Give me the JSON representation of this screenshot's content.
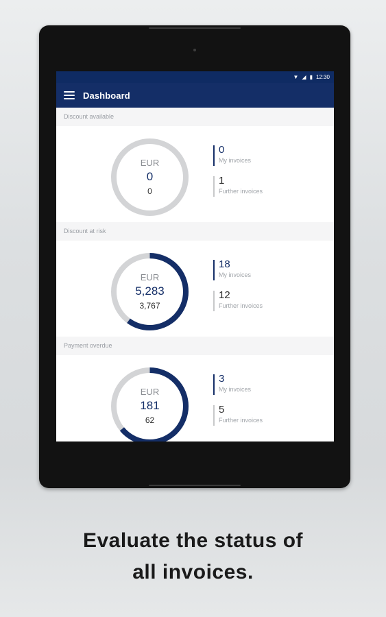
{
  "status_bar": {
    "time": "12:30",
    "icons": [
      "wifi-icon",
      "signal-icon",
      "battery-icon"
    ]
  },
  "app_bar": {
    "title": "Dashboard",
    "menu_icon": "menu-icon"
  },
  "sections": [
    {
      "title": "Discount available",
      "currency": "EUR",
      "amount": "0",
      "sub_amount": "0",
      "progress": 0,
      "my_invoices": {
        "value": "0",
        "label": "My invoices"
      },
      "further_invoices": {
        "value": "1",
        "label": "Further invoices"
      }
    },
    {
      "title": "Discount at risk",
      "currency": "EUR",
      "amount": "5,283",
      "sub_amount": "3,767",
      "progress": 0.6,
      "my_invoices": {
        "value": "18",
        "label": "My invoices"
      },
      "further_invoices": {
        "value": "12",
        "label": "Further invoices"
      }
    },
    {
      "title": "Payment overdue",
      "currency": "EUR",
      "amount": "181",
      "sub_amount": "62",
      "progress": 0.64,
      "my_invoices": {
        "value": "3",
        "label": "My invoices"
      },
      "further_invoices": {
        "value": "5",
        "label": "Further invoices"
      }
    }
  ],
  "colors": {
    "primary": "#142e67",
    "ring_track": "#d3d4d6",
    "secondary_bar": "#c7c8ca"
  },
  "caption": {
    "line1": "Evaluate the status of",
    "line2": "all invoices."
  }
}
